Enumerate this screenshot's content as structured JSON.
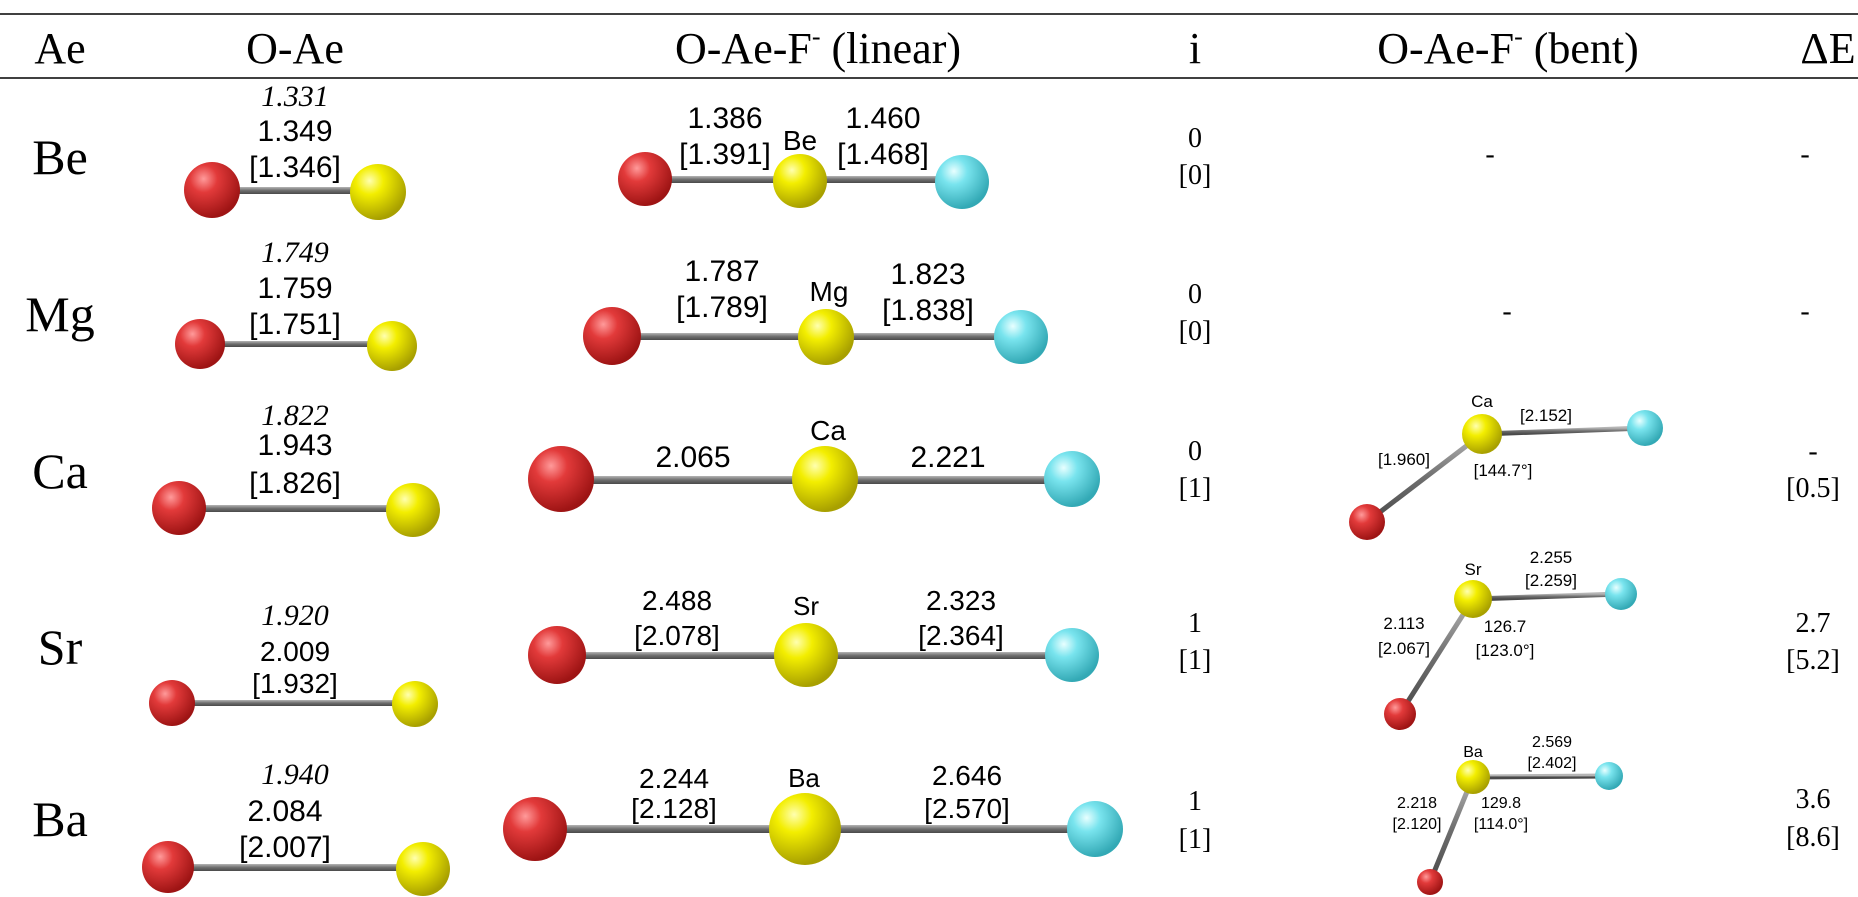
{
  "header": {
    "col_ae": "Ae",
    "col_oae": "O-Ae",
    "col_linear_base": "O-Ae-F",
    "col_linear_sup": "-",
    "col_linear_suffix": " (linear)",
    "col_i": "i",
    "col_bent_base": "O-Ae-F",
    "col_bent_sup": "-",
    "col_bent_suffix": " (bent)",
    "col_de": "ΔE"
  },
  "colors": {
    "oxygen": "#e23a3a",
    "metal": "#f3ee00",
    "fluorine": "#79e4ee",
    "bond": "#808080"
  },
  "rows": [
    {
      "ae": "Be",
      "diatomic": {
        "italic": "1.331",
        "value": "1.349",
        "bracket": "[1.346]"
      },
      "linear": {
        "label": "Be",
        "left_value": "1.386",
        "left_bracket": "[1.391]",
        "right_value": "1.460",
        "right_bracket": "[1.468]"
      },
      "i": {
        "value": "0",
        "bracket": "[0]"
      },
      "bent": {
        "present": false,
        "dash": "-"
      },
      "de": {
        "value": "-",
        "bracket": ""
      }
    },
    {
      "ae": "Mg",
      "diatomic": {
        "italic": "1.749",
        "value": "1.759",
        "bracket": "[1.751]"
      },
      "linear": {
        "label": "Mg",
        "left_value": "1.787",
        "left_bracket": "[1.789]",
        "right_value": "1.823",
        "right_bracket": "[1.838]"
      },
      "i": {
        "value": "0",
        "bracket": "[0]"
      },
      "bent": {
        "present": false,
        "dash": "-"
      },
      "de": {
        "value": "-",
        "bracket": ""
      }
    },
    {
      "ae": "Ca",
      "diatomic": {
        "italic": "1.822",
        "value": "1.943",
        "bracket": "[1.826]"
      },
      "linear": {
        "label": "Ca",
        "left_value": "2.065",
        "left_bracket": "",
        "right_value": "2.221",
        "right_bracket": ""
      },
      "i": {
        "value": "0",
        "bracket": "[1]"
      },
      "bent": {
        "present": true,
        "label": "Ca",
        "ox_value": "",
        "ox_bracket": "[1.960]",
        "f_value": "",
        "f_bracket": "[2.152]",
        "angle_value": "",
        "angle_bracket": "[144.7°]"
      },
      "de": {
        "value": "-",
        "bracket": "[0.5]"
      }
    },
    {
      "ae": "Sr",
      "diatomic": {
        "italic": "1.920",
        "value": "2.009",
        "bracket": "[1.932]"
      },
      "linear": {
        "label": "Sr",
        "left_value": "2.488",
        "left_bracket": "[2.078]",
        "right_value": "2.323",
        "right_bracket": "[2.364]"
      },
      "i": {
        "value": "1",
        "bracket": "[1]"
      },
      "bent": {
        "present": true,
        "label": "Sr",
        "ox_value": "2.113",
        "ox_bracket": "[2.067]",
        "f_value": "2.255",
        "f_bracket": "[2.259]",
        "angle_value": "126.7",
        "angle_bracket": "[123.0°]"
      },
      "de": {
        "value": "2.7",
        "bracket": "[5.2]"
      }
    },
    {
      "ae": "Ba",
      "diatomic": {
        "italic": "1.940",
        "value": "2.084",
        "bracket": "[2.007]"
      },
      "linear": {
        "label": "Ba",
        "left_value": "2.244",
        "left_bracket": "[2.128]",
        "right_value": "2.646",
        "right_bracket": "[2.570]"
      },
      "i": {
        "value": "1",
        "bracket": "[1]"
      },
      "bent": {
        "present": true,
        "label": "Ba",
        "ox_value": "2.218",
        "ox_bracket": "[2.120]",
        "f_value": "2.569",
        "f_bracket": "[2.402]",
        "angle_value": "129.8",
        "angle_bracket": "[114.0°]"
      },
      "de": {
        "value": "3.6",
        "bracket": "[8.6]"
      }
    }
  ]
}
